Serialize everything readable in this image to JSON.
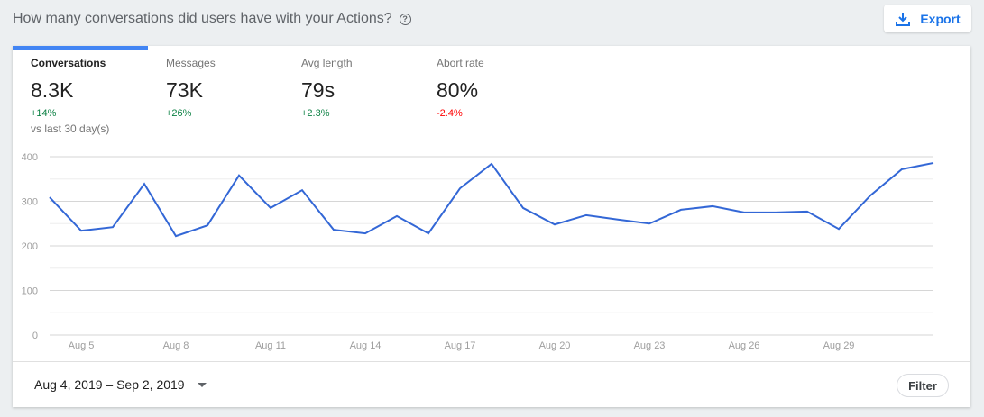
{
  "header": {
    "title": "How many conversations did users have with your Actions?",
    "help_icon": "help-circle-icon",
    "export_label": "Export",
    "export_icon": "download-icon"
  },
  "metrics": [
    {
      "label": "Conversations",
      "value": "8.3K",
      "change": "+14%",
      "change_color": "#0b8043",
      "comparison": "vs last 30 day(s)",
      "active": true
    },
    {
      "label": "Messages",
      "value": "73K",
      "change": "+26%",
      "change_color": "#0b8043"
    },
    {
      "label": "Avg length",
      "value": "79s",
      "change": "+2.3%",
      "change_color": "#0b8043"
    },
    {
      "label": "Abort rate",
      "value": "80%",
      "change": "-2.4%",
      "change_color": "#ff0000"
    }
  ],
  "chart_data": {
    "type": "line",
    "x": [
      "Aug 4",
      "Aug 5",
      "Aug 6",
      "Aug 7",
      "Aug 8",
      "Aug 9",
      "Aug 10",
      "Aug 11",
      "Aug 12",
      "Aug 13",
      "Aug 14",
      "Aug 15",
      "Aug 16",
      "Aug 17",
      "Aug 18",
      "Aug 19",
      "Aug 20",
      "Aug 21",
      "Aug 22",
      "Aug 23",
      "Aug 24",
      "Aug 25",
      "Aug 26",
      "Aug 27",
      "Aug 28",
      "Aug 29",
      "Aug 30",
      "Aug 31",
      "Sep 1"
    ],
    "series": [
      {
        "values": [
          309,
          234,
          242,
          339,
          222,
          246,
          358,
          285,
          325,
          236,
          228,
          267,
          228,
          329,
          384,
          285,
          248,
          269,
          259,
          250,
          281,
          289,
          275,
          275,
          277,
          238,
          313,
          372,
          386
        ],
        "color": "#3367d6"
      }
    ],
    "yticks": [
      0,
      100,
      200,
      300,
      400
    ],
    "xtick_labels": [
      "Aug 5",
      "Aug 8",
      "Aug 11",
      "Aug 14",
      "Aug 17",
      "Aug 20",
      "Aug 23",
      "Aug 26",
      "Aug 29"
    ],
    "ylim": [
      0,
      400
    ],
    "grid": true
  },
  "footer": {
    "date_range": "Aug 4, 2019 – Sep 2, 2019",
    "filter_label": "Filter"
  }
}
